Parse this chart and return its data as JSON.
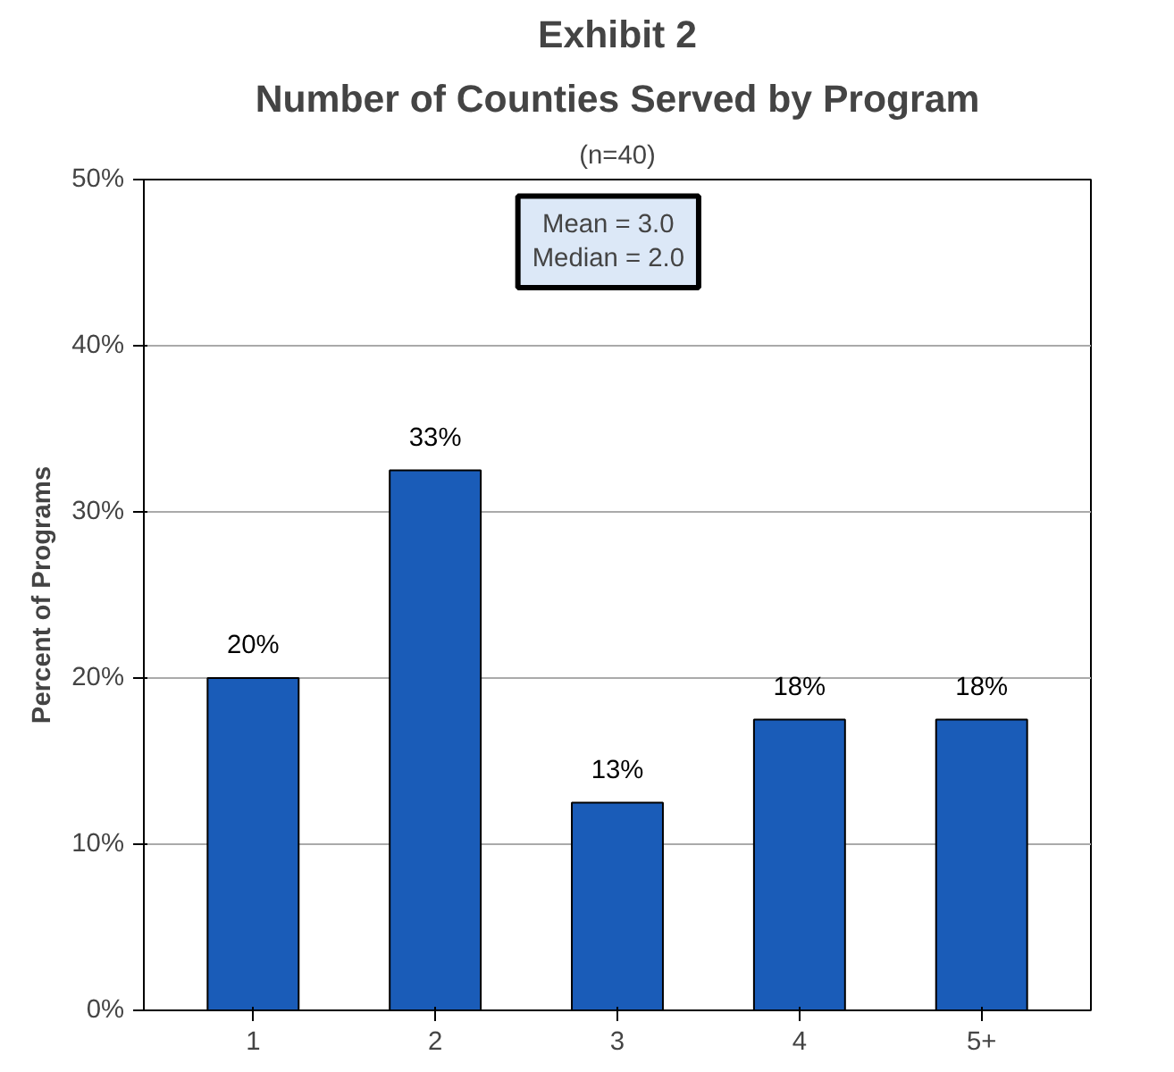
{
  "chart_data": {
    "type": "bar",
    "title": "Number of Counties Served by Program",
    "subtitle": "(n=40)",
    "ylabel": "Percent of Programs",
    "annotations": [
      "Exhibit 2",
      "Mean = 3.0\nMedian = 2.0"
    ],
    "categories": [
      "1",
      "2",
      "3",
      "4",
      "5+"
    ],
    "values": [
      20,
      32.5,
      12.5,
      17.5,
      17.5
    ],
    "value_labels": [
      "20%",
      "33%",
      "13%",
      "18%",
      "18%"
    ],
    "color": "#1a5cb8",
    "ylim": [
      0,
      50
    ],
    "yticks": [
      {
        "value": 0,
        "label": "0%"
      },
      {
        "value": 10,
        "label": "10%"
      },
      {
        "value": 20,
        "label": "20%"
      },
      {
        "value": 30,
        "label": "30%"
      },
      {
        "value": 40,
        "label": "40%"
      },
      {
        "value": 50,
        "label": "50%"
      }
    ],
    "grid": "y"
  }
}
